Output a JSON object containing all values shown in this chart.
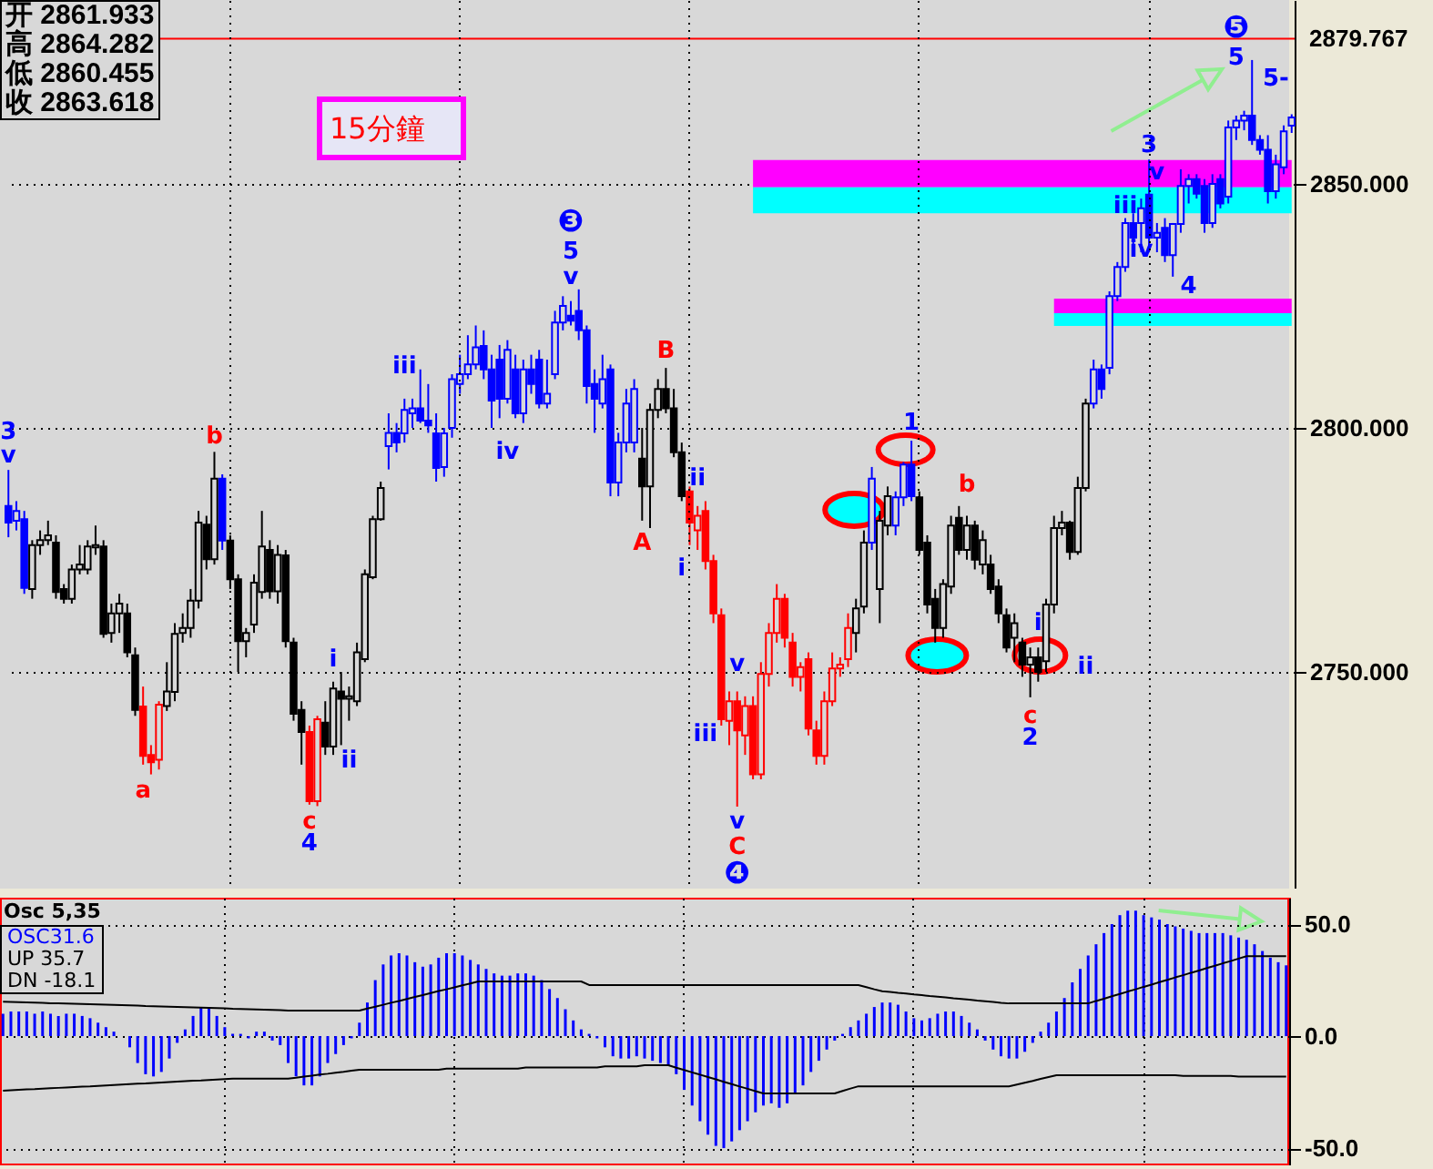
{
  "chart_data": [
    {
      "type": "candlestick",
      "categories": [
        null,
        null,
        null,
        null,
        null,
        null,
        null,
        null,
        null,
        null,
        null,
        null,
        null,
        null,
        null,
        null,
        null,
        null,
        null,
        null,
        null,
        null,
        null,
        null,
        null,
        null,
        null,
        null,
        null,
        null,
        null,
        null,
        null,
        null,
        null,
        null,
        null,
        null,
        null,
        null,
        null,
        null,
        null,
        null,
        null,
        null,
        null,
        null,
        null,
        null,
        null,
        null,
        null,
        null,
        null,
        null,
        null,
        null,
        null,
        null,
        null,
        null,
        null,
        null,
        null,
        null,
        null,
        null,
        null,
        null,
        null,
        null,
        null,
        null,
        null,
        null,
        null,
        null,
        null,
        null,
        null,
        null,
        null,
        null,
        null,
        null,
        null,
        null,
        null,
        null,
        null,
        null,
        null,
        null,
        null,
        null,
        null,
        null,
        null,
        null,
        null,
        null,
        null,
        null,
        null,
        null,
        null,
        null,
        null,
        null,
        null,
        null,
        null,
        null,
        null,
        null,
        null,
        null,
        null,
        null,
        null,
        null,
        null,
        null,
        null,
        null,
        null,
        null,
        null,
        null,
        null,
        null,
        null,
        null,
        null,
        null,
        null,
        null,
        null,
        null,
        null,
        null,
        null,
        null,
        null,
        null,
        null,
        null,
        null,
        null,
        null,
        null,
        null,
        null,
        null,
        null,
        null,
        null,
        null,
        null,
        null,
        null,
        null
      ],
      "ohlc": [
        [
          2784,
          2791.4,
          2777.6,
          2780.6
        ],
        [
          2781,
          2785,
          2779,
          2783
        ],
        [
          2781.3,
          2783,
          2766,
          2767.2
        ],
        [
          2767,
          2777,
          2765,
          2776
        ],
        [
          2776,
          2779,
          2774,
          2777
        ],
        [
          2777,
          2781,
          2776,
          2778
        ],
        [
          2776.5,
          2778,
          2765,
          2766.4
        ],
        [
          2767,
          2768,
          2764,
          2765
        ],
        [
          2765,
          2772,
          2764,
          2771
        ],
        [
          2771,
          2776,
          2770,
          2772
        ],
        [
          2771,
          2777,
          2770,
          2775.7
        ],
        [
          2775.5,
          2780,
          2774,
          2776
        ],
        [
          2775.7,
          2777,
          2757,
          2757.8
        ],
        [
          2758,
          2764,
          2756,
          2762
        ],
        [
          2762,
          2766,
          2758,
          2764
        ],
        [
          2762,
          2764,
          2753,
          2754
        ],
        [
          2753.4,
          2755,
          2741,
          2742.2
        ],
        [
          2742.9,
          2747,
          2731,
          2732.8
        ],
        [
          2733,
          2735,
          2729,
          2731.5
        ],
        [
          2732,
          2744,
          2730,
          2743.3
        ],
        [
          2743,
          2752,
          2742,
          2746
        ],
        [
          2745.9,
          2760,
          2744,
          2757.8
        ],
        [
          2758,
          2762,
          2756,
          2759
        ],
        [
          2759,
          2767,
          2757,
          2764.6
        ],
        [
          2764.6,
          2783,
          2763,
          2780.6
        ],
        [
          2780.2,
          2782,
          2771,
          2773.1
        ],
        [
          2773.1,
          2795.1,
          2772,
          2789.6
        ],
        [
          2789.6,
          2790.5,
          2775,
          2776.9
        ],
        [
          2776.9,
          2778,
          2767,
          2769
        ],
        [
          2769,
          2770,
          2750,
          2756.3
        ],
        [
          2756.3,
          2759,
          2753,
          2758
        ],
        [
          2759.7,
          2770,
          2758,
          2768.3
        ],
        [
          2766.4,
          2783,
          2765,
          2775.7
        ],
        [
          2775,
          2777,
          2765,
          2766.5
        ],
        [
          2766.5,
          2776,
          2764,
          2774
        ],
        [
          2773.9,
          2775,
          2755,
          2756.3
        ],
        [
          2756,
          2757,
          2740,
          2741.4
        ],
        [
          2742.2,
          2744,
          2731,
          2737.7
        ],
        [
          2737.7,
          2739,
          2722.8,
          2723.5
        ],
        [
          2723.5,
          2741,
          2722.5,
          2740.3
        ],
        [
          2739.6,
          2744,
          2733,
          2734.7
        ],
        [
          2734.7,
          2748,
          2733,
          2746.6
        ],
        [
          2746,
          2750,
          2735,
          2744.5
        ],
        [
          2744.5,
          2747,
          2740,
          2745
        ],
        [
          2744,
          2756,
          2743,
          2754
        ],
        [
          2752.6,
          2771,
          2752,
          2770
        ],
        [
          2769.4,
          2782,
          2769,
          2781.3
        ],
        [
          2781.3,
          2789,
          2781,
          2787.7
        ],
        [
          2796.3,
          2803,
          2791.5,
          2799
        ],
        [
          2799,
          2801,
          2795,
          2797
        ],
        [
          2798.9,
          2806,
          2797,
          2803.7
        ],
        [
          2803,
          2806,
          2800,
          2804
        ],
        [
          2804,
          2812,
          2801,
          2801.5
        ],
        [
          2801.5,
          2809,
          2799,
          2800.5
        ],
        [
          2798.9,
          2803,
          2789,
          2791.8
        ],
        [
          2792,
          2800,
          2790,
          2798.9
        ],
        [
          2800,
          2811,
          2798,
          2810
        ],
        [
          2809,
          2815,
          2807,
          2811
        ],
        [
          2811,
          2819,
          2810,
          2813
        ],
        [
          2813,
          2821,
          2812,
          2816.5
        ],
        [
          2816.8,
          2820,
          2810,
          2812
        ],
        [
          2812,
          2815,
          2800,
          2805.6
        ],
        [
          2814,
          2817,
          2802,
          2806
        ],
        [
          2806,
          2818,
          2805,
          2816
        ],
        [
          2812,
          2815,
          2802,
          2803
        ],
        [
          2803,
          2814,
          2801,
          2812
        ],
        [
          2812,
          2815,
          2807,
          2809
        ],
        [
          2814,
          2816,
          2804,
          2805
        ],
        [
          2805,
          2814,
          2804,
          2807
        ],
        [
          2811,
          2824,
          2810,
          2821.6
        ],
        [
          2821.6,
          2827,
          2820,
          2825
        ],
        [
          2823,
          2826,
          2821,
          2822
        ],
        [
          2824,
          2828.4,
          2818,
          2820
        ],
        [
          2820,
          2821,
          2805,
          2808.6
        ],
        [
          2809,
          2812,
          2799,
          2806
        ],
        [
          2805,
          2815,
          2804,
          2810
        ],
        [
          2812,
          2813,
          2786,
          2788.8
        ],
        [
          2788.8,
          2799,
          2786,
          2797
        ],
        [
          2797,
          2808,
          2795,
          2805
        ],
        [
          2797,
          2810,
          2795,
          2808
        ],
        [
          2793.7,
          2800,
          2781,
          2788
        ],
        [
          2788,
          2805,
          2779.5,
          2803.7
        ],
        [
          2803.7,
          2810,
          2802,
          2808
        ],
        [
          2808,
          2812.3,
          2803,
          2804
        ],
        [
          2804,
          2808,
          2794,
          2795
        ],
        [
          2795,
          2797,
          2785,
          2786
        ],
        [
          2787,
          2788,
          2776,
          2780.6
        ],
        [
          2779,
          2784,
          2775,
          2782
        ],
        [
          2783,
          2785,
          2771,
          2772.7
        ],
        [
          2772.7,
          2774,
          2760,
          2762
        ],
        [
          2761.6,
          2763,
          2739,
          2740.3
        ],
        [
          2740,
          2746,
          2735,
          2744
        ],
        [
          2744,
          2746,
          2722.4,
          2738
        ],
        [
          2737,
          2745,
          2733,
          2743
        ],
        [
          2743,
          2745,
          2728,
          2729
        ],
        [
          2729,
          2752,
          2728,
          2749.6
        ],
        [
          2749.6,
          2760,
          2747,
          2758
        ],
        [
          2758,
          2768,
          2756,
          2765
        ],
        [
          2765,
          2766,
          2755,
          2757
        ],
        [
          2756,
          2758,
          2747,
          2749
        ],
        [
          2749,
          2752,
          2746,
          2751
        ],
        [
          2752.6,
          2754,
          2737,
          2738.4
        ],
        [
          2738,
          2740,
          2731,
          2732.8
        ],
        [
          2732.8,
          2746,
          2731,
          2744
        ],
        [
          2744,
          2754,
          2743,
          2750.7
        ],
        [
          2750.7,
          2753,
          2749,
          2751.5
        ],
        [
          2752.6,
          2762,
          2751,
          2759
        ],
        [
          2758,
          2765,
          2754,
          2763
        ],
        [
          2763.4,
          2779,
          2762,
          2776.5
        ],
        [
          2776.5,
          2792,
          2775,
          2789.6
        ],
        [
          2767,
          2783,
          2760,
          2781
        ],
        [
          2780,
          2788,
          2778,
          2786
        ],
        [
          2780,
          2787,
          2778,
          2785.8
        ],
        [
          2785.8,
          2793,
          2784,
          2792.5
        ],
        [
          2792.5,
          2797.4,
          2785,
          2786
        ],
        [
          2785.8,
          2787,
          2774,
          2775
        ],
        [
          2776.5,
          2778,
          2762,
          2763.8
        ],
        [
          2765,
          2767,
          2756,
          2759
        ],
        [
          2759,
          2769,
          2757,
          2768
        ],
        [
          2767.5,
          2782,
          2766,
          2780
        ],
        [
          2781.6,
          2784,
          2774,
          2775
        ],
        [
          2775,
          2782,
          2773,
          2780
        ],
        [
          2780,
          2781,
          2771,
          2773
        ],
        [
          2772,
          2779,
          2770,
          2777
        ],
        [
          2772,
          2774,
          2766,
          2767
        ],
        [
          2767.5,
          2769,
          2760,
          2762
        ],
        [
          2761.6,
          2763,
          2754,
          2755
        ],
        [
          2757,
          2762,
          2752,
          2760
        ],
        [
          2756,
          2757,
          2749,
          2751.5
        ],
        [
          2751.5,
          2755,
          2744.8,
          2753
        ],
        [
          2753,
          2755,
          2748,
          2750
        ],
        [
          2752.2,
          2765,
          2750,
          2763.8
        ],
        [
          2763.8,
          2782,
          2762,
          2779.5
        ],
        [
          2779.5,
          2783,
          2778,
          2780.6
        ],
        [
          2780.6,
          2781,
          2773,
          2774.6
        ],
        [
          2774.6,
          2790,
          2774,
          2787.7
        ],
        [
          2787.7,
          2806,
          2787,
          2805
        ],
        [
          2805,
          2814,
          2804,
          2812
        ],
        [
          2812,
          2813,
          2806,
          2808
        ],
        [
          2812.3,
          2828,
          2811,
          2827
        ],
        [
          2827,
          2834,
          2826,
          2833
        ],
        [
          2833,
          2843,
          2832,
          2842
        ],
        [
          2842,
          2844,
          2837,
          2839
        ],
        [
          2842,
          2847,
          2836,
          2845
        ],
        [
          2847.8,
          2855,
          2836,
          2839
        ],
        [
          2839,
          2842,
          2836,
          2840
        ],
        [
          2841,
          2843,
          2834,
          2835.4
        ],
        [
          2835.4,
          2842,
          2831,
          2841.8
        ],
        [
          2841.8,
          2853,
          2840,
          2849.6
        ],
        [
          2849.6,
          2852,
          2846,
          2851
        ],
        [
          2851,
          2852,
          2847,
          2848
        ],
        [
          2849.6,
          2851,
          2840,
          2842
        ],
        [
          2842,
          2852,
          2841,
          2850
        ],
        [
          2851,
          2852,
          2845,
          2846
        ],
        [
          2847.4,
          2863,
          2846,
          2861.6
        ],
        [
          2861.6,
          2864,
          2859,
          2863
        ],
        [
          2863,
          2865,
          2861,
          2864
        ],
        [
          2864,
          2875.4,
          2858,
          2859
        ],
        [
          2859,
          2860,
          2856,
          2857
        ],
        [
          2857,
          2860,
          2846,
          2848.5
        ],
        [
          2848.5,
          2856,
          2847,
          2854
        ],
        [
          2853.4,
          2862,
          2852,
          2860.8
        ],
        [
          2861.933,
          2864.282,
          2860.455,
          2863.618
        ]
      ],
      "colors": [
        "#0000ff",
        "#0000ff",
        "#0000ff",
        "#000000",
        "#000000",
        "#000000",
        "#000000",
        "#000000",
        "#000000",
        "#000000",
        "#000000",
        "#000000",
        "#000000",
        "#000000",
        "#000000",
        "#000000",
        "#000000",
        "#ff0000",
        "#ff0000",
        "#ff0000",
        "#000000",
        "#000000",
        "#000000",
        "#000000",
        "#000000",
        "#000000",
        "#000000",
        "#0000ff",
        "#000000",
        "#000000",
        "#000000",
        "#000000",
        "#000000",
        "#000000",
        "#000000",
        "#000000",
        "#000000",
        "#000000",
        "#ff0000",
        "#ff0000",
        "#000000",
        "#000000",
        "#000000",
        "#000000",
        "#000000",
        "#000000",
        "#000000",
        "#000000",
        "#0000ff",
        "#0000ff",
        "#0000ff",
        "#0000ff",
        "#0000ff",
        "#0000ff",
        "#0000ff",
        "#0000ff",
        "#0000ff",
        "#0000ff",
        "#0000ff",
        "#0000ff",
        "#0000ff",
        "#0000ff",
        "#0000ff",
        "#0000ff",
        "#0000ff",
        "#0000ff",
        "#0000ff",
        "#0000ff",
        "#0000ff",
        "#0000ff",
        "#0000ff",
        "#0000ff",
        "#0000ff",
        "#0000ff",
        "#0000ff",
        "#0000ff",
        "#0000ff",
        "#0000ff",
        "#0000ff",
        "#0000ff",
        "#000000",
        "#000000",
        "#000000",
        "#000000",
        "#000000",
        "#000000",
        "#ff0000",
        "#ff0000",
        "#ff0000",
        "#ff0000",
        "#ff0000",
        "#ff0000",
        "#ff0000",
        "#ff0000",
        "#ff0000",
        "#ff0000",
        "#ff0000",
        "#ff0000",
        "#ff0000",
        "#ff0000",
        "#ff0000",
        "#ff0000",
        "#ff0000",
        "#ff0000",
        "#ff0000",
        "#ff0000",
        "#ff0000",
        "#000000",
        "#000000",
        "#0000ff",
        "#000000",
        "#000000",
        "#0000ff",
        "#0000ff",
        "#0000ff",
        "#000000",
        "#000000",
        "#000000",
        "#000000",
        "#000000",
        "#000000",
        "#000000",
        "#000000",
        "#000000",
        "#000000",
        "#000000",
        "#000000",
        "#000000",
        "#000000",
        "#000000",
        "#000000",
        "#000000",
        "#000000",
        "#000000",
        "#000000",
        "#000000",
        "#000000",
        "#0000ff",
        "#0000ff",
        "#0000ff",
        "#0000ff",
        "#0000ff",
        "#0000ff",
        "#0000ff",
        "#0000ff",
        "#0000ff",
        "#0000ff",
        "#0000ff",
        "#0000ff",
        "#0000ff",
        "#0000ff",
        "#0000ff",
        "#0000ff",
        "#0000ff",
        "#0000ff",
        "#0000ff",
        "#0000ff",
        "#0000ff",
        "#0000ff",
        "#0000ff",
        "#0000ff",
        "#0000ff",
        "#0000ff"
      ],
      "ylim": [
        2705.6,
        2887.7
      ],
      "yticks": [
        {
          "value": 2750,
          "label": "2750.000"
        },
        {
          "value": 2800,
          "label": "2800.000"
        },
        {
          "value": 2850,
          "label": "2850.000"
        }
      ],
      "tick_labels": "y",
      "grid": true,
      "ref_lines": [
        {
          "axis": "y",
          "value": 2879.767,
          "label": "2879.767",
          "color": "#ff0000"
        }
      ],
      "bands": [
        {
          "axis": "y",
          "from": 2849.3,
          "to": 2854.9,
          "color": "#ff00ff"
        },
        {
          "axis": "y",
          "from": 2844,
          "to": 2849.3,
          "color": "#00ffff"
        },
        {
          "axis": "y",
          "from": 2823.5,
          "to": 2826.5,
          "color": "#ff00ff"
        },
        {
          "axis": "y",
          "from": 2820.9,
          "to": 2823.5,
          "color": "#00ffff"
        }
      ],
      "annotations": [
        "开 2861.933",
        "高 2864.282",
        "低 2860.455",
        "收 2863.618",
        "15分鐘",
        "3",
        "v",
        "b",
        "a",
        "i",
        "ii",
        "c",
        "4",
        "iii",
        "iv",
        "❸",
        "5",
        "v",
        "B",
        "A",
        "ii",
        "i",
        "v",
        "iii",
        "v",
        "C",
        "❹",
        "1",
        "b",
        "c",
        "2",
        "i",
        "ii",
        "3",
        "v",
        "iii",
        "iv",
        "4",
        "❺",
        "5",
        "5-"
      ]
    },
    {
      "type": "bar",
      "title": "Osc 5,35",
      "categories": [
        null,
        null,
        null,
        null,
        null,
        null,
        null,
        null,
        null,
        null,
        null,
        null,
        null,
        null,
        null,
        null,
        null,
        null,
        null,
        null,
        null,
        null,
        null,
        null,
        null,
        null,
        null,
        null,
        null,
        null,
        null,
        null,
        null,
        null,
        null,
        null,
        null,
        null,
        null,
        null,
        null,
        null,
        null,
        null,
        null,
        null,
        null,
        null,
        null,
        null,
        null,
        null,
        null,
        null,
        null,
        null,
        null,
        null,
        null,
        null,
        null,
        null,
        null,
        null,
        null,
        null,
        null,
        null,
        null,
        null,
        null,
        null,
        null,
        null,
        null,
        null,
        null,
        null,
        null,
        null,
        null,
        null,
        null,
        null,
        null,
        null,
        null,
        null,
        null,
        null,
        null,
        null,
        null,
        null,
        null,
        null,
        null,
        null,
        null,
        null,
        null,
        null,
        null,
        null,
        null,
        null,
        null,
        null,
        null,
        null,
        null,
        null,
        null,
        null,
        null,
        null,
        null,
        null,
        null,
        null,
        null,
        null,
        null,
        null,
        null,
        null,
        null,
        null,
        null,
        null,
        null,
        null,
        null,
        null,
        null,
        null,
        null,
        null,
        null,
        null,
        null,
        null,
        null,
        null,
        null,
        null,
        null,
        null,
        null,
        null,
        null,
        null,
        null,
        null,
        null,
        null,
        null,
        null,
        null,
        null,
        null,
        null,
        null
      ],
      "series": [
        {
          "type": "bar",
          "color": "#0000ff",
          "values": [
            10,
            11,
            11,
            11,
            10,
            11,
            10,
            9,
            10,
            10,
            9,
            8,
            6,
            4,
            2,
            0,
            -5,
            -12,
            -17,
            -18,
            -16,
            -10,
            -3,
            3,
            9,
            13,
            13,
            9,
            4,
            1,
            1,
            -1,
            2,
            2,
            -2,
            -4,
            -12,
            -18,
            -22,
            -22,
            -18,
            -12,
            -8,
            -4,
            -1,
            6,
            15,
            25,
            32,
            36,
            37,
            36,
            33,
            31,
            32,
            35,
            37,
            37,
            36,
            34,
            32,
            30,
            28,
            27,
            27,
            28,
            28,
            27,
            25,
            21,
            17,
            12,
            7,
            3,
            1,
            -1,
            -5,
            -9,
            -10,
            -10,
            -9,
            -10,
            -11,
            -12,
            -13,
            -17,
            -24,
            -31,
            -38,
            -44,
            -49,
            -50,
            -47,
            -42,
            -38,
            -34,
            -31,
            -30,
            -32,
            -30,
            -26,
            -22,
            -16,
            -11,
            -6,
            -2,
            1,
            4,
            7,
            10,
            13,
            15,
            15,
            14,
            11,
            8,
            7,
            8,
            10,
            11,
            11,
            9,
            6,
            3,
            -2,
            -6,
            -9,
            -10,
            -10,
            -7,
            -3,
            2,
            6,
            11,
            17,
            24,
            30,
            36,
            41,
            46,
            50,
            54,
            56,
            56,
            54,
            53,
            52,
            50,
            49,
            48,
            47,
            46,
            46,
            46,
            46,
            45,
            44,
            43,
            41,
            38,
            35,
            33,
            31.6
          ]
        },
        {
          "type": "line",
          "color": "#000000",
          "values": [
            15.4,
            15.3,
            15.2,
            15.1,
            15.0,
            14.9,
            14.7,
            14.6,
            14.5,
            14.4,
            14.3,
            14.2,
            14.1,
            14.0,
            13.9,
            13.8,
            13.7,
            13.6,
            13.4,
            13.3,
            13.2,
            13.1,
            13.0,
            12.9,
            12.8,
            12.7,
            12.6,
            12.5,
            12.4,
            12.2,
            12.1,
            12.0,
            11.9,
            11.8,
            11.7,
            11.6,
            11.4,
            11.4,
            11.4,
            11.4,
            11.4,
            11.4,
            11.4,
            11.4,
            11.4,
            11.4,
            12.3,
            13.1,
            14.0,
            14.9,
            15.7,
            16.6,
            17.5,
            18.3,
            19.2,
            20.1,
            20.9,
            21.8,
            22.7,
            23.5,
            24.4,
            24.4,
            24.4,
            24.4,
            24.4,
            24.4,
            24.4,
            24.4,
            24.4,
            24.4,
            24.4,
            24.4,
            24.4,
            24.4,
            22.8,
            22.8,
            22.8,
            22.8,
            22.8,
            22.8,
            22.8,
            22.8,
            22.8,
            22.8,
            22.8,
            22.8,
            22.8,
            22.8,
            22.8,
            22.8,
            22.8,
            22.8,
            22.8,
            22.8,
            22.8,
            22.8,
            22.8,
            22.8,
            22.8,
            22.8,
            22.8,
            22.8,
            22.8,
            22.8,
            22.8,
            22.8,
            22.8,
            22.8,
            22.8,
            21.9,
            20.9,
            20.0,
            19.7,
            19.3,
            19.0,
            18.6,
            18.3,
            17.9,
            17.6,
            17.3,
            16.9,
            16.6,
            16.3,
            15.9,
            15.6,
            15.3,
            14.9,
            14.6,
            14.6,
            14.6,
            14.6,
            14.6,
            14.6,
            14.6,
            14.6,
            14.6,
            14.6,
            14.6,
            15.7,
            16.7,
            17.8,
            18.8,
            19.9,
            20.9,
            22.0,
            23.0,
            24.1,
            25.1,
            26.2,
            27.2,
            28.3,
            29.3,
            30.4,
            31.4,
            32.5,
            33.5,
            34.6,
            35.7,
            35.7,
            35.7,
            35.7,
            35.7,
            35.7
          ]
        },
        {
          "type": "line",
          "color": "#000000",
          "values": [
            -24.4,
            -24.2,
            -24.0,
            -23.8,
            -23.7,
            -23.5,
            -23.3,
            -23.1,
            -22.9,
            -22.7,
            -22.5,
            -22.4,
            -22.2,
            -22.0,
            -21.8,
            -21.6,
            -21.4,
            -21.2,
            -21.1,
            -20.9,
            -20.7,
            -20.5,
            -20.3,
            -20.1,
            -19.9,
            -19.8,
            -19.6,
            -19.4,
            -19.2,
            -19.0,
            -19.0,
            -19.0,
            -19.0,
            -19.0,
            -19.0,
            -19.0,
            -19.0,
            -18.6,
            -18.1,
            -17.7,
            -17.2,
            -16.8,
            -16.3,
            -15.9,
            -15.4,
            -15.0,
            -15.0,
            -15.0,
            -15.0,
            -15.0,
            -15.0,
            -15.0,
            -15.0,
            -15.0,
            -15.0,
            -15.0,
            -14.5,
            -14.5,
            -14.5,
            -14.5,
            -14.5,
            -14.5,
            -14.5,
            -14.5,
            -14.5,
            -14.5,
            -14.0,
            -14.0,
            -14.0,
            -14.0,
            -14.0,
            -14.0,
            -14.0,
            -14.0,
            -14.0,
            -14.0,
            -13.5,
            -13.5,
            -13.5,
            -13.5,
            -13.5,
            -13.0,
            -13.0,
            -13.0,
            -13.0,
            -14.1,
            -15.1,
            -16.2,
            -17.2,
            -18.3,
            -19.3,
            -20.4,
            -21.4,
            -22.5,
            -23.5,
            -24.6,
            -25.6,
            -25.6,
            -25.6,
            -25.6,
            -25.6,
            -25.6,
            -25.6,
            -25.6,
            -25.6,
            -25.6,
            -24.5,
            -23.4,
            -22.4,
            -22.4,
            -22.4,
            -22.4,
            -22.4,
            -22.4,
            -22.4,
            -22.4,
            -22.4,
            -22.4,
            -22.4,
            -22.4,
            -22.4,
            -22.4,
            -22.4,
            -22.4,
            -22.4,
            -22.4,
            -22.4,
            -22.4,
            -21.6,
            -20.8,
            -20.0,
            -19.1,
            -18.3,
            -17.5,
            -17.5,
            -17.5,
            -17.5,
            -17.5,
            -17.5,
            -17.5,
            -17.5,
            -17.5,
            -17.5,
            -17.5,
            -17.5,
            -17.5,
            -17.5,
            -17.5,
            -17.5,
            -17.8,
            -17.8,
            -17.8,
            -17.8,
            -17.8,
            -17.8,
            -17.8,
            -18.1,
            -18.1,
            -18.1,
            -18.1,
            -18.1,
            -18.1,
            -18.1
          ]
        }
      ],
      "ylim": [
        -57.7,
        61.8
      ],
      "yticks": [
        {
          "value": 50,
          "label": "50.0"
        },
        {
          "value": 0,
          "label": "0.0"
        },
        {
          "value": -50,
          "label": "-50.0"
        }
      ],
      "tick_labels": "y",
      "grid": true,
      "annotations": [
        "OSC31.6",
        "UP 35.7",
        "DN -18.1"
      ]
    }
  ]
}
